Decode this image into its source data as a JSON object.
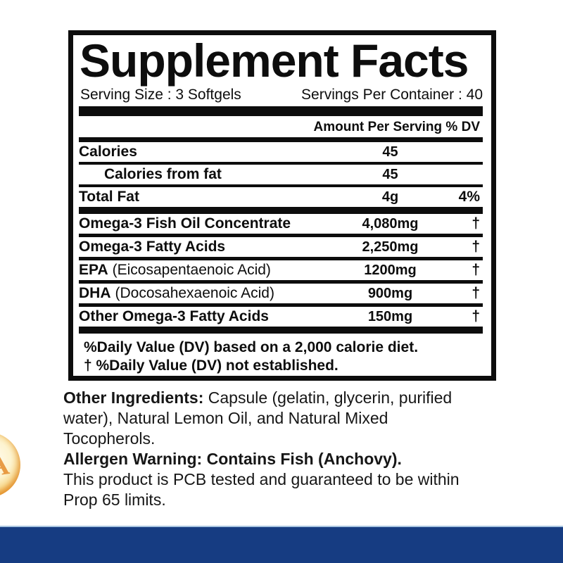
{
  "supplement_facts": {
    "title": "Supplement Facts",
    "serving_size": "Serving Size : 3 Softgels",
    "servings_per_container": "Servings Per Container : 40",
    "column_header": "Amount Per Serving % DV",
    "rows": [
      {
        "name": "Calories",
        "note": "",
        "amount": "45",
        "dv": ""
      },
      {
        "name": "Calories from fat",
        "note": "",
        "amount": "45",
        "dv": ""
      },
      {
        "name": "Total Fat",
        "note": "",
        "amount": "4g",
        "dv": "4%"
      },
      {
        "name": "Omega-3 Fish Oil Concentrate",
        "note": "",
        "amount": "4,080mg",
        "dv": "†"
      },
      {
        "name": "Omega-3 Fatty Acids",
        "note": "",
        "amount": "2,250mg",
        "dv": "†"
      },
      {
        "name": "EPA",
        "note": "(Eicosapentaenoic Acid)",
        "amount": "1200mg",
        "dv": "†"
      },
      {
        "name": "DHA",
        "note": "(Docosahexaenoic Acid)",
        "amount": "900mg",
        "dv": "†"
      },
      {
        "name": "Other Omega-3 Fatty Acids",
        "note": "",
        "amount": "150mg",
        "dv": "†"
      }
    ],
    "footnote_line1": "%Daily Value (DV) based on a 2,000 calorie diet.",
    "footnote_line2": "† %Daily Value (DV) not established."
  },
  "details": {
    "other_ingredients_label": "Other Ingredients:",
    "other_ingredients_line1": " Capsule (gelatin, glycerin, purified",
    "other_ingredients_line2": "water), Natural Lemon Oil, and Natural Mixed",
    "other_ingredients_line3": "Tocopherols.",
    "allergen_warning": "Allergen Warning: Contains Fish (Anchovy).",
    "pcb_line1": "This product is PCB tested and guaranteed to be within",
    "pcb_line2": "Prop 65 limits."
  },
  "icons": {
    "softgel_capsule": "gold fish-oil softgel, partially visible at left edge",
    "softgel_letter": "A"
  },
  "colors": {
    "footer_band_blue": "#163c82",
    "footer_band_highlight": "#a9c6e0",
    "softgel_gold": "#f4bc55",
    "softgel_rim_orange": "#e8861a",
    "label_border_black": "#0d0d0d"
  }
}
